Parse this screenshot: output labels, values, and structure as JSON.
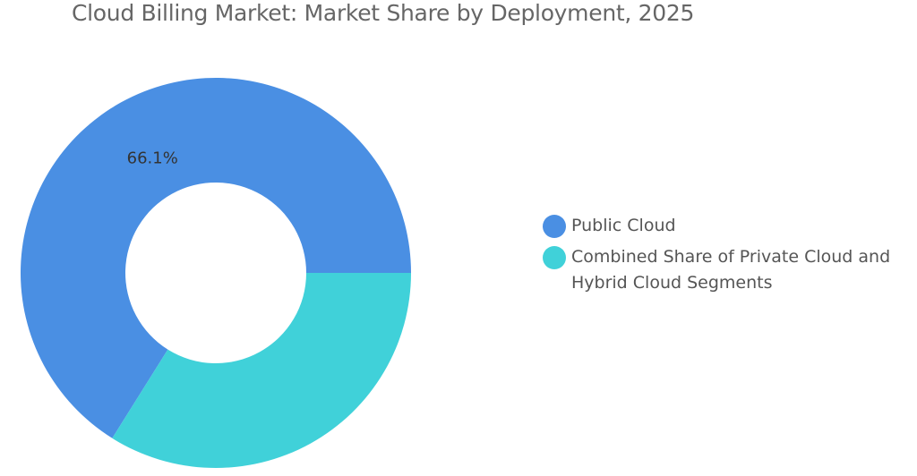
{
  "chart_data": {
    "type": "donut",
    "title": "Cloud Billing Market: Market Share by Deployment, 2025",
    "categories": [
      "Public Cloud",
      "Combined Share of Private Cloud and Hybrid Cloud Segments"
    ],
    "values": [
      66.1,
      33.9
    ],
    "value_labels": [
      "66.1%",
      null
    ],
    "colors": [
      "#4a8fe3",
      "#40d1d9"
    ],
    "legend": "right"
  }
}
